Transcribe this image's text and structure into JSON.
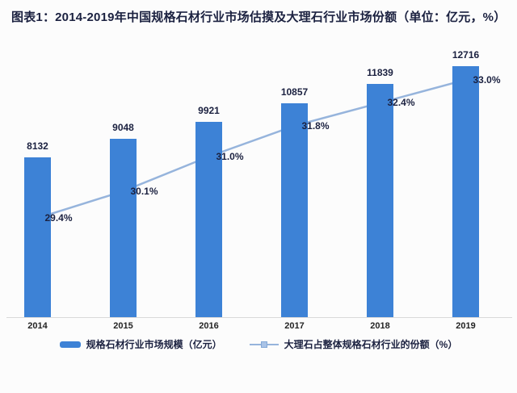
{
  "title": "图表1：2014-2019年中国规格石材行业市场估摸及大理石行业市场份额（单位：亿元，%）",
  "chart_data": {
    "type": "bar",
    "subtype": "bar-line-combo",
    "categories": [
      "2014",
      "2015",
      "2016",
      "2017",
      "2018",
      "2019"
    ],
    "series": [
      {
        "name": "规格石材行业市场规模（亿元）",
        "type": "bar",
        "values": [
          8132,
          9048,
          9921,
          10857,
          11839,
          12716
        ],
        "value_labels": [
          "8132",
          "9048",
          "9921",
          "10857",
          "11839",
          "12716"
        ],
        "color": "#3d82d6",
        "axis_range": [
          0,
          13000
        ]
      },
      {
        "name": "大理石占整体规格石材行业的份额（%）",
        "type": "line",
        "values": [
          29.4,
          30.1,
          31.0,
          31.8,
          32.4,
          33.0
        ],
        "value_labels": [
          "29.4%",
          "30.1%",
          "31.0%",
          "31.8%",
          "32.4%",
          "33.0%"
        ],
        "color": "#96b4dc",
        "marker_fill": "#a9c3e6",
        "marker_stroke": "#83a8d6",
        "axis_range": [
          26.8,
          33.5
        ]
      }
    ],
    "xlabel": "",
    "ylabel": "",
    "grid": false,
    "legend_position": "bottom",
    "axis_line_color": "#d9d9d9",
    "text_color": "#1b2140",
    "background": "#fcfcfc"
  },
  "legend": {
    "items": [
      {
        "label": "规格石材行业市场规模（亿元）",
        "swatch": "bar"
      },
      {
        "label": "大理石占整体规格石材行业的份额（%）",
        "swatch": "line-marker"
      }
    ]
  }
}
